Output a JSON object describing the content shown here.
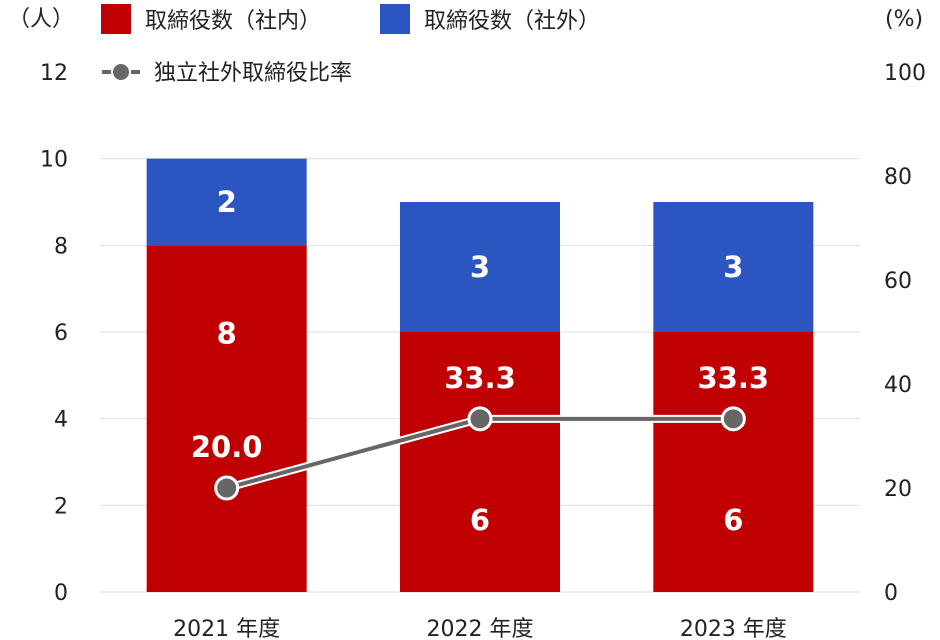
{
  "chart_data": {
    "type": "bar",
    "categories": [
      "2021 年度",
      "2022 年度",
      "2023 年度"
    ],
    "left_axis_unit": "（人）",
    "right_axis_unit": "(%)",
    "left_ticks": [
      "0",
      "2",
      "4",
      "6",
      "8",
      "10",
      "12"
    ],
    "right_ticks": [
      "0",
      "20",
      "40",
      "60",
      "80",
      "100"
    ],
    "ylim": [
      0,
      12
    ],
    "y2lim": [
      0,
      100
    ],
    "series": [
      {
        "name": "取締役数（社内）",
        "type": "bar",
        "stack": "board",
        "color": "#c00000",
        "values": [
          8,
          6,
          6
        ],
        "labels": [
          "8",
          "6",
          "6"
        ]
      },
      {
        "name": "取締役数（社外）",
        "type": "bar",
        "stack": "board",
        "color": "#2b55c0",
        "values": [
          2,
          3,
          3
        ],
        "labels": [
          "2",
          "3",
          "3"
        ]
      },
      {
        "name": "独立社外取締役比率",
        "type": "line",
        "axis": "right",
        "color": "#666666",
        "values": [
          20.0,
          33.3,
          33.3
        ],
        "labels": [
          "20.0",
          "33.3",
          "33.3"
        ]
      }
    ],
    "grid": true,
    "legend_position": "top"
  }
}
